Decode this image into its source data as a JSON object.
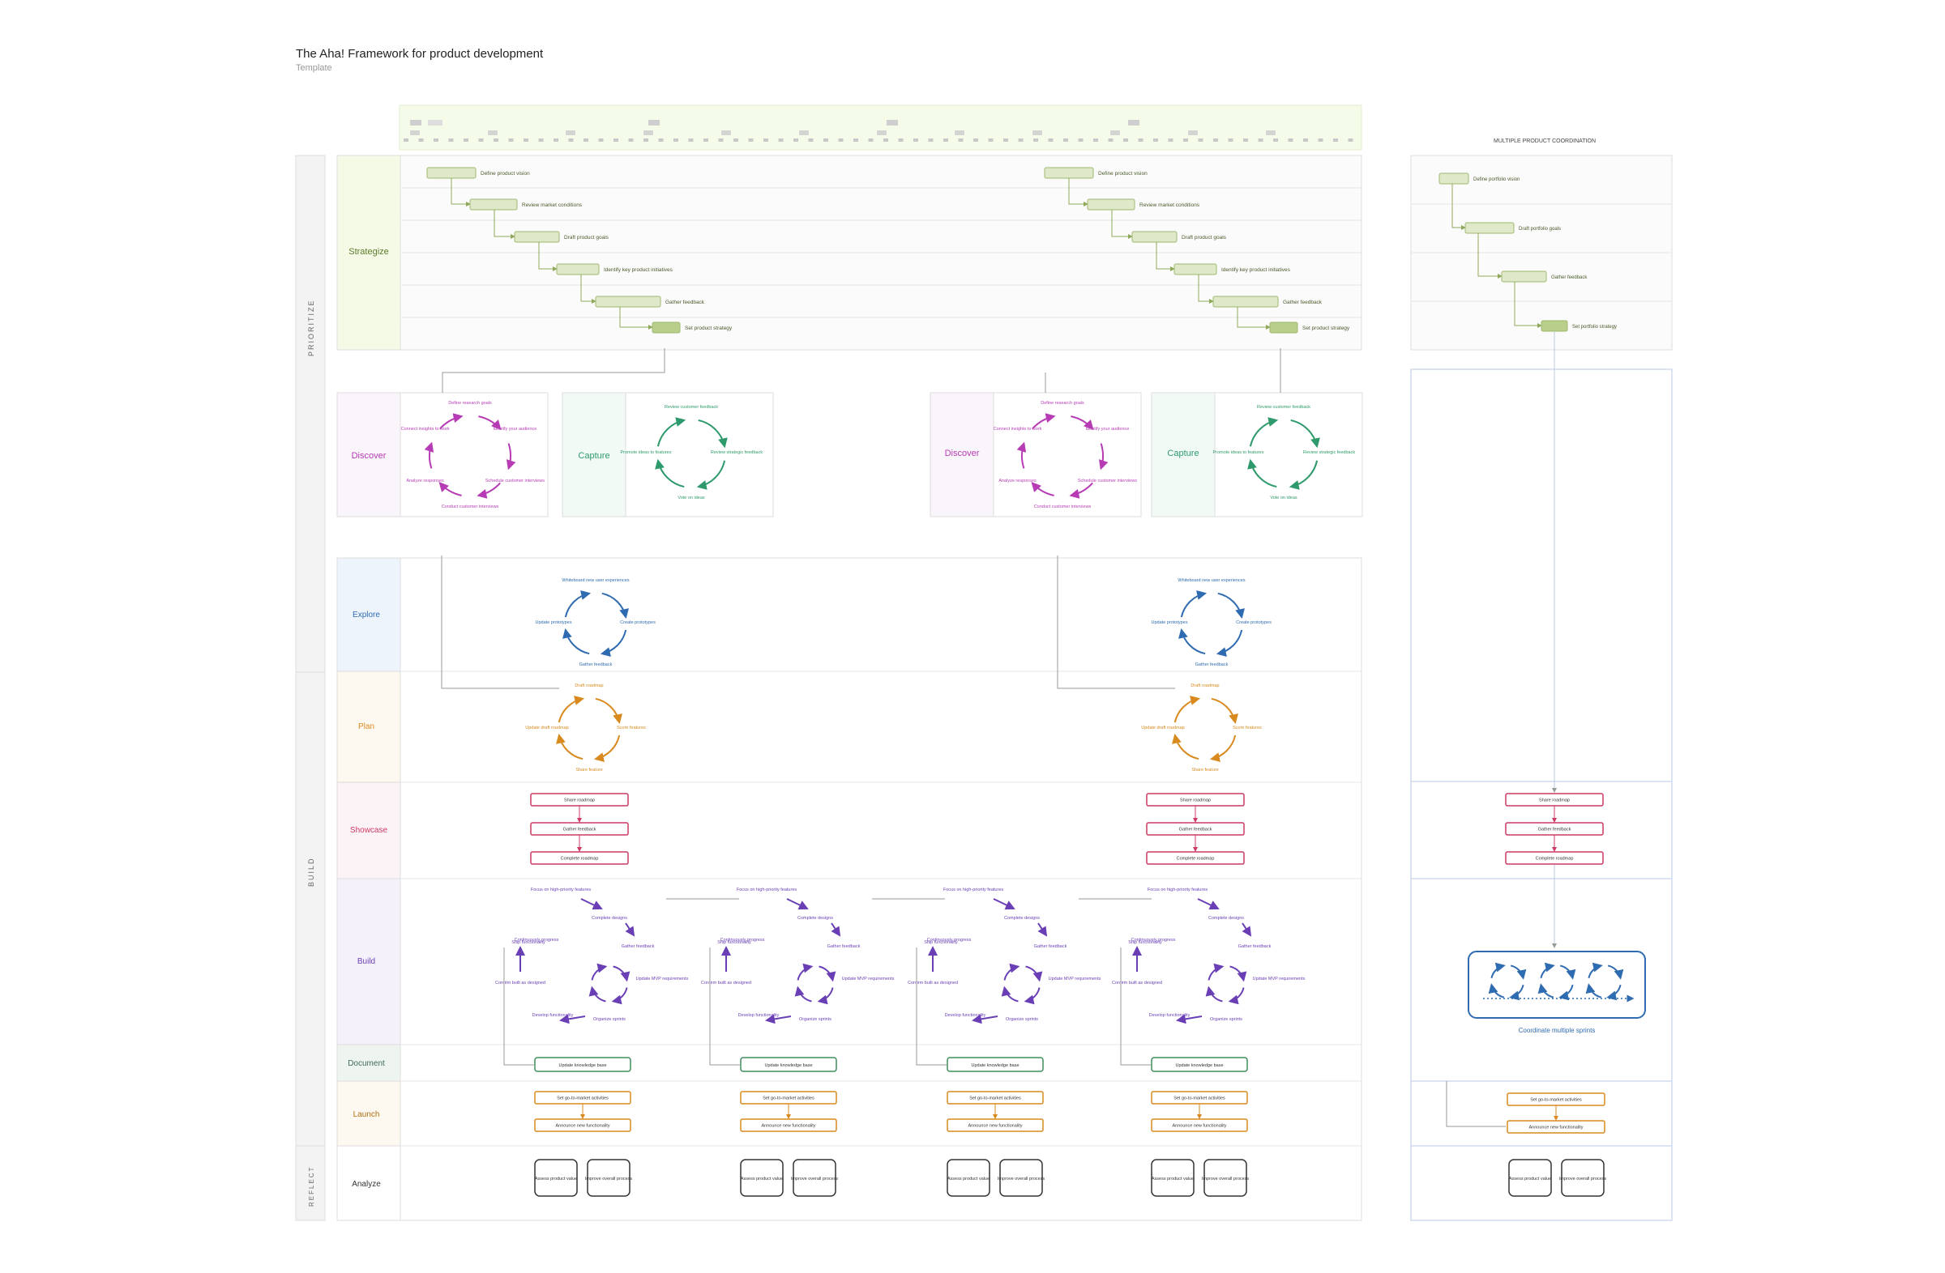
{
  "header": {
    "title": "The Aha! Framework for product development",
    "subtitle": "Template"
  },
  "colors": {
    "strategize": "#8fa85a",
    "discover": "#b63bb4",
    "capture": "#2e9a6c",
    "explore": "#2f6bb0",
    "plan": "#d88a1e",
    "showcase": "#cc3a64",
    "build": "#6a3fb6",
    "document": "#3f8d5c",
    "launch": "#d88a1e",
    "analyze": "#333333"
  },
  "phases": {
    "prioritize": "PRIORITIZE",
    "build": "BUILD",
    "reflect": "REFLECT"
  },
  "lanes": {
    "strategize": "Strategize",
    "discover": "Discover",
    "capture": "Capture",
    "explore": "Explore",
    "plan": "Plan",
    "showcase": "Showcase",
    "build": "Build",
    "document": "Document",
    "launch": "Launch",
    "analyze": "Analyze"
  },
  "strategy_steps": [
    "Define product vision",
    "Review market conditions",
    "Draft product goals",
    "Identify key product initiatives",
    "Gather feedback",
    "Set product strategy"
  ],
  "discover_steps": [
    "Define research goals",
    "Identify your audience",
    "Schedule customer interviews",
    "Conduct customer interviews",
    "Analyze responses",
    "Connect insights to work"
  ],
  "capture_steps": [
    "Review customer feedback",
    "Review strategic feedback",
    "Vote on ideas",
    "Promote ideas to features"
  ],
  "explore_steps": [
    "Whiteboard new user experiences",
    "Create prototypes",
    "Gather feedback",
    "Update prototypes"
  ],
  "plan_steps": [
    "Draft roadmap",
    "Score features",
    "Share feature",
    "Update draft roadmap"
  ],
  "showcase_steps": [
    "Share roadmap",
    "Gather feedback",
    "Complete roadmap"
  ],
  "build_steps": [
    "Focus on high-priority features",
    "Complete designs",
    "Gather feedback",
    "Update MVP requirements",
    "Organize sprints",
    "Develop functionality",
    "Confirm built as designed",
    "Ship functionality",
    "Continuously progress"
  ],
  "document_step": "Update knowledge base",
  "launch_steps": [
    "Set go-to-market activities",
    "Announce new functionality"
  ],
  "analyze_steps": [
    "Assess product value",
    "Improve overall process"
  ],
  "multi": {
    "title": "MULTIPLE PRODUCT COORDINATION",
    "strategy_steps": [
      "Define portfolio vision",
      "Draft portfolio goals",
      "Gather feedback",
      "Set portfolio strategy"
    ],
    "coordinate_label": "Coordinate multiple sprints"
  }
}
